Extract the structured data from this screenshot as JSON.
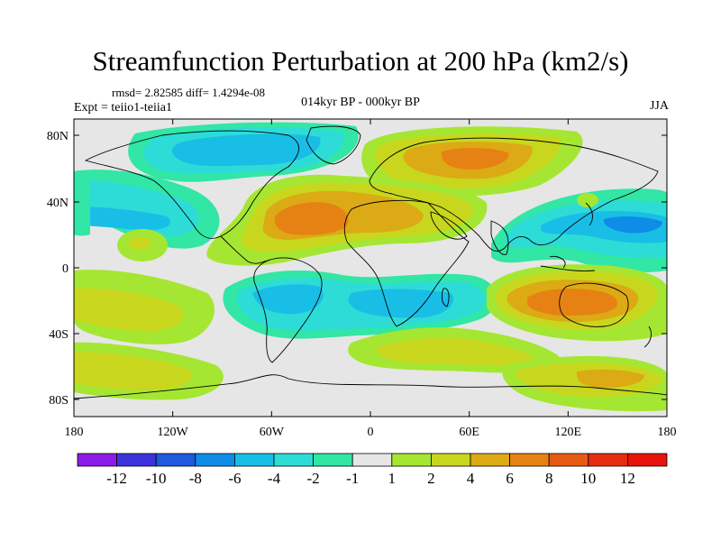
{
  "title": "Streamfunction Perturbation at 200 hPa (km2/s)",
  "stats": "rmsd= 2.82585 diff= 1.4294e-08",
  "experiment": "Expt = teiio1-teiia1",
  "period": "014kyr BP - 000kyr BP",
  "season": "JJA",
  "lat_ticks": [
    "80N",
    "40N",
    "0",
    "40S",
    "80S"
  ],
  "lon_ticks": [
    "180",
    "120W",
    "60W",
    "0",
    "60E",
    "120E",
    "180"
  ],
  "colorbar": {
    "labels": [
      "-12",
      "-10",
      "-8",
      "-6",
      "-4",
      "-2",
      "-1",
      "1",
      "2",
      "4",
      "6",
      "8",
      "10",
      "12"
    ],
    "colors": [
      "#8c1ce6",
      "#3c32dc",
      "#1e5ae0",
      "#0f8ce6",
      "#19bee6",
      "#2ddcd7",
      "#32e6a5",
      "#e6e6e6",
      "#a5e632",
      "#c8d71e",
      "#dcaa14",
      "#e68214",
      "#e65a14",
      "#e62d0f",
      "#e6140a"
    ]
  }
}
